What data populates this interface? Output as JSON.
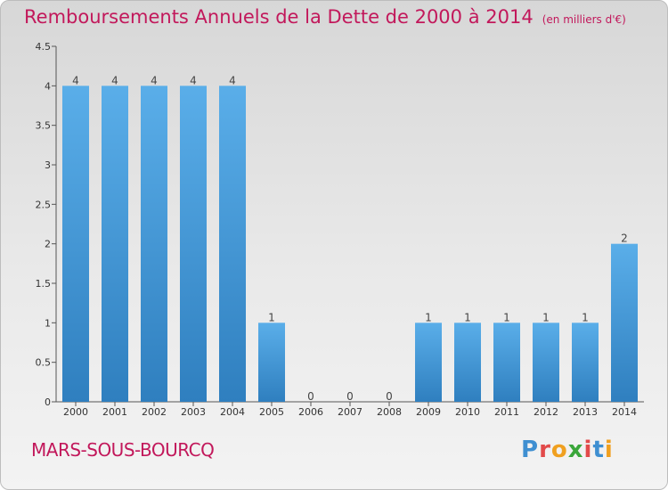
{
  "title": {
    "main": "Remboursements Annuels de la Dette de 2000 à 2014",
    "unit": "(en milliers d'€)"
  },
  "commune": "MARS-SOUS-BOURCQ",
  "logo": {
    "letters": [
      "P",
      "r",
      "o",
      "x",
      "i",
      "t",
      "i"
    ]
  },
  "colors": {
    "title": "#c2185b",
    "bar_top": "#5aaee9",
    "bar_bottom": "#2f7fbf"
  },
  "chart_data": {
    "type": "bar",
    "categories": [
      "2000",
      "2001",
      "2002",
      "2003",
      "2004",
      "2005",
      "2006",
      "2007",
      "2008",
      "2009",
      "2010",
      "2011",
      "2012",
      "2013",
      "2014"
    ],
    "values": [
      4,
      4,
      4,
      4,
      4,
      1,
      0,
      0,
      0,
      1,
      1,
      1,
      1,
      1,
      2
    ],
    "data_labels": [
      "4",
      "4",
      "4",
      "4",
      "4",
      "1",
      "0",
      "0",
      "0",
      "1",
      "1",
      "1",
      "1",
      "1",
      "2"
    ],
    "ylim": [
      0,
      4.5
    ],
    "yticks": [
      "0",
      "0.5",
      "1",
      "1.5",
      "2",
      "2.5",
      "3",
      "3.5",
      "4",
      "4.5"
    ],
    "xlabel": "",
    "ylabel": "",
    "grid": false
  }
}
